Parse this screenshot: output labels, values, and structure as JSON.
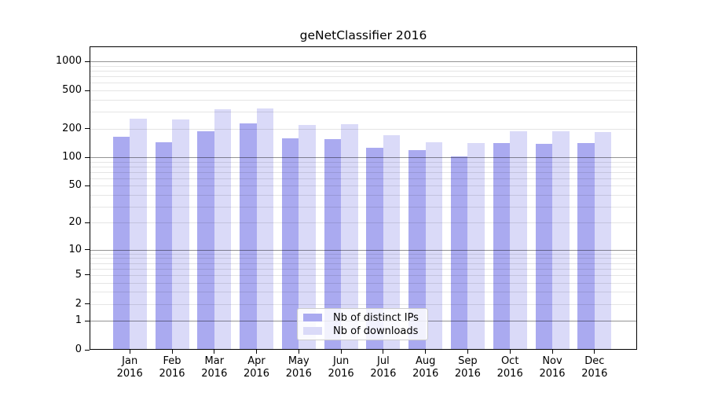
{
  "title": "geNetClassifier 2016",
  "legend": {
    "items": [
      {
        "label": "Nb of distinct IPs",
        "color": "#aaaaf0"
      },
      {
        "label": "Nb of downloads",
        "color": "#dadaf8"
      }
    ]
  },
  "chart_data": {
    "type": "bar",
    "title": "geNetClassifier 2016",
    "categories": [
      "Jan 2016",
      "Feb 2016",
      "Mar 2016",
      "Apr 2016",
      "May 2016",
      "Jun 2016",
      "Jul 2016",
      "Aug 2016",
      "Sep 2016",
      "Oct 2016",
      "Nov 2016",
      "Dec 2016"
    ],
    "month_labels": [
      "Jan",
      "Feb",
      "Mar",
      "Apr",
      "May",
      "Jun",
      "Jul",
      "Aug",
      "Sep",
      "Oct",
      "Nov",
      "Dec"
    ],
    "year": "2016",
    "series": [
      {
        "name": "Nb of distinct IPs",
        "color": "#aaaaf0",
        "values": [
          163,
          144,
          186,
          226,
          159,
          154,
          127,
          118,
          103,
          140,
          138,
          140
        ]
      },
      {
        "name": "Nb of downloads",
        "color": "#dadaf8",
        "values": [
          255,
          250,
          318,
          322,
          218,
          222,
          172,
          144,
          142,
          188,
          188,
          184
        ]
      }
    ],
    "xlabel": "",
    "ylabel": "",
    "y_scale": "log1p",
    "ylim": [
      0,
      1440
    ],
    "y_ticks": [
      0,
      1,
      2,
      5,
      10,
      20,
      50,
      100,
      200,
      500,
      1000
    ],
    "y_gridlines_major": [
      1,
      10,
      100,
      1000
    ],
    "y_gridlines_minor": [
      2,
      3,
      4,
      5,
      6,
      7,
      8,
      9,
      20,
      30,
      40,
      50,
      60,
      70,
      80,
      90,
      200,
      300,
      400,
      500,
      600,
      700,
      800,
      900
    ],
    "grid": "on",
    "legend_position": "lower center"
  }
}
